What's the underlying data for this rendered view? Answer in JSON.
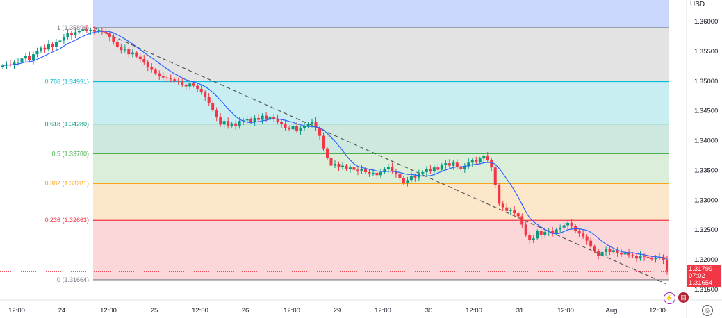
{
  "chart_data": {
    "type": "candlestick",
    "currency": "USD",
    "y_axis": {
      "ylim": [
        1.314,
        1.3628
      ],
      "ticks": [
        "1.36000",
        "1.35500",
        "1.35000",
        "1.34500",
        "1.34000",
        "1.33500",
        "1.33000",
        "1.32500",
        "1.32000",
        "1.31500"
      ],
      "tick_values": [
        1.36,
        1.355,
        1.35,
        1.345,
        1.34,
        1.335,
        1.33,
        1.325,
        1.32,
        1.315
      ]
    },
    "x_axis": {
      "tick_labels": [
        "12:00",
        "24",
        "12:00",
        "25",
        "12:00",
        "26",
        "12:00",
        "29",
        "12:00",
        "30",
        "12:00",
        "31",
        "12:00",
        "Aug",
        "12:00"
      ]
    },
    "fibonacci": [
      {
        "label": "1 (1.35896)",
        "level": 1.35896,
        "color": "#787b86",
        "fill": "#e3e3e3"
      },
      {
        "label": "0.786 (1.34991)",
        "level": 1.34991,
        "color": "#00bcd4",
        "fill": "#c8eef2"
      },
      {
        "label": "0.618 (1.34280)",
        "level": 1.3428,
        "color": "#089981",
        "fill": "#cde9df"
      },
      {
        "label": "0.5 (1.33780)",
        "level": 1.3378,
        "color": "#4caf50",
        "fill": "#dbeed9"
      },
      {
        "label": "0.382 (1.33281)",
        "level": 1.33281,
        "color": "#ff9800",
        "fill": "#fce7cb"
      },
      {
        "label": "0.236 (1.32663)",
        "level": 1.32663,
        "color": "#f23645",
        "fill": "#fbd7da"
      },
      {
        "label": "0 (1.31664)",
        "level": 1.31664,
        "color": "#787b86",
        "fill": null
      }
    ],
    "top_zone_fill": "#c9d8fb",
    "candles_close": [
      1.3526,
      1.3528,
      1.3527,
      1.3531,
      1.3532,
      1.3538,
      1.3542,
      1.3535,
      1.3545,
      1.355,
      1.3556,
      1.3553,
      1.3562,
      1.3557,
      1.3565,
      1.3568,
      1.3574,
      1.358,
      1.3577,
      1.3582,
      1.3584,
      1.3587,
      1.3585,
      1.3586,
      1.3583,
      1.3585,
      1.3584,
      1.358,
      1.3574,
      1.3566,
      1.3558,
      1.3552,
      1.3554,
      1.3545,
      1.3548,
      1.3541,
      1.3537,
      1.3531,
      1.3524,
      1.3519,
      1.3513,
      1.3508,
      1.3506,
      1.3505,
      1.3503,
      1.3501,
      1.3499,
      1.3494,
      1.3491,
      1.3496,
      1.3492,
      1.3487,
      1.3481,
      1.3474,
      1.3463,
      1.3451,
      1.3439,
      1.3427,
      1.3433,
      1.3425,
      1.3429,
      1.3424,
      1.3433,
      1.3434,
      1.3436,
      1.3431,
      1.3438,
      1.3435,
      1.3442,
      1.3436,
      1.344,
      1.3437,
      1.3432,
      1.3428,
      1.3421,
      1.3419,
      1.3424,
      1.3417,
      1.3421,
      1.3424,
      1.3428,
      1.3432,
      1.3421,
      1.3408,
      1.3387,
      1.3371,
      1.3358,
      1.3361,
      1.3356,
      1.3358,
      1.3352,
      1.3355,
      1.3351,
      1.3349,
      1.3353,
      1.3347,
      1.3345,
      1.3346,
      1.3342,
      1.3347,
      1.3352,
      1.3356,
      1.3349,
      1.3344,
      1.3337,
      1.3329,
      1.3334,
      1.3341,
      1.3338,
      1.3345,
      1.3347,
      1.3352,
      1.3348,
      1.3355,
      1.3351,
      1.3359,
      1.3362,
      1.3358,
      1.3363,
      1.3356,
      1.3352,
      1.3357,
      1.3363,
      1.3367,
      1.3364,
      1.337,
      1.3374,
      1.3368,
      1.3355,
      1.3325,
      1.3294,
      1.3288,
      1.3282,
      1.3284,
      1.3278,
      1.3273,
      1.3259,
      1.3242,
      1.3233,
      1.3236,
      1.3248,
      1.3241,
      1.3247,
      1.3249,
      1.3244,
      1.3251,
      1.3254,
      1.3258,
      1.3262,
      1.3257,
      1.3248,
      1.3244,
      1.3239,
      1.3232,
      1.3222,
      1.3214,
      1.3207,
      1.3213,
      1.3218,
      1.3213,
      1.3216,
      1.3211,
      1.3209,
      1.3212,
      1.3208,
      1.3206,
      1.3202,
      1.3207,
      1.3205,
      1.3203,
      1.3201,
      1.3203,
      1.3205,
      1.32,
      1.318
    ],
    "ma_color": "#2962ff",
    "trendline": {
      "from": [
        1.359,
        "24 15:00"
      ],
      "to": [
        1.3167,
        "Aug 15:00"
      ],
      "style": "dashed"
    },
    "price_labels": {
      "current": "1.31799",
      "countdown": "07:02",
      "low": "1.31654"
    }
  }
}
